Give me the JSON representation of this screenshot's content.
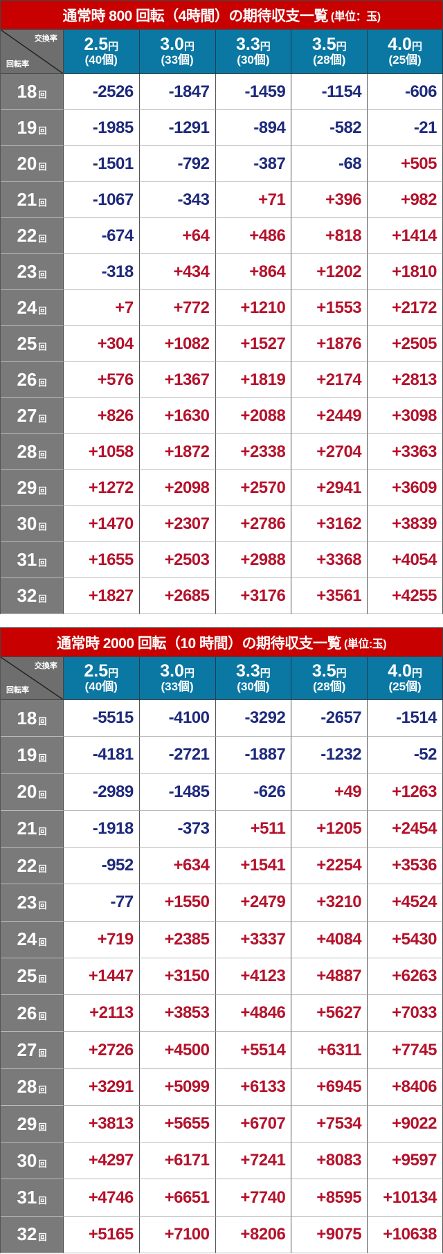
{
  "common": {
    "rate_label": "交換率",
    "spin_label": "回転率",
    "round_suffix": "回",
    "yen": "円",
    "columns": [
      {
        "rate": "2.5",
        "balls": "(40個)"
      },
      {
        "rate": "3.0",
        "balls": "(33個)"
      },
      {
        "rate": "3.3",
        "balls": "(30個)"
      },
      {
        "rate": "3.5",
        "balls": "(28個)"
      },
      {
        "rate": "4.0",
        "balls": "(25個)"
      }
    ],
    "colors": {
      "title_bg": "#c80000",
      "header_bg": "#0a78a3",
      "row_header_bg": "#7a7a7a",
      "negative": "#1d2a7c",
      "positive": "#b5122b"
    }
  },
  "tables": [
    {
      "title": "通常時 800 回転（4時間）の期待収支一覧",
      "unit": "(単位：玉)",
      "rows": [
        {
          "spin": "18",
          "values": [
            "-2526",
            "-1847",
            "-1459",
            "-1154",
            "-606"
          ]
        },
        {
          "spin": "19",
          "values": [
            "-1985",
            "-1291",
            "-894",
            "-582",
            "-21"
          ]
        },
        {
          "spin": "20",
          "values": [
            "-1501",
            "-792",
            "-387",
            "-68",
            "+505"
          ]
        },
        {
          "spin": "21",
          "values": [
            "-1067",
            "-343",
            "+71",
            "+396",
            "+982"
          ]
        },
        {
          "spin": "22",
          "values": [
            "-674",
            "+64",
            "+486",
            "+818",
            "+1414"
          ]
        },
        {
          "spin": "23",
          "values": [
            "-318",
            "+434",
            "+864",
            "+1202",
            "+1810"
          ]
        },
        {
          "spin": "24",
          "values": [
            "+7",
            "+772",
            "+1210",
            "+1553",
            "+2172"
          ]
        },
        {
          "spin": "25",
          "values": [
            "+304",
            "+1082",
            "+1527",
            "+1876",
            "+2505"
          ]
        },
        {
          "spin": "26",
          "values": [
            "+576",
            "+1367",
            "+1819",
            "+2174",
            "+2813"
          ]
        },
        {
          "spin": "27",
          "values": [
            "+826",
            "+1630",
            "+2088",
            "+2449",
            "+3098"
          ]
        },
        {
          "spin": "28",
          "values": [
            "+1058",
            "+1872",
            "+2338",
            "+2704",
            "+3363"
          ]
        },
        {
          "spin": "29",
          "values": [
            "+1272",
            "+2098",
            "+2570",
            "+2941",
            "+3609"
          ]
        },
        {
          "spin": "30",
          "values": [
            "+1470",
            "+2307",
            "+2786",
            "+3162",
            "+3839"
          ]
        },
        {
          "spin": "31",
          "values": [
            "+1655",
            "+2503",
            "+2988",
            "+3368",
            "+4054"
          ]
        },
        {
          "spin": "32",
          "values": [
            "+1827",
            "+2685",
            "+3176",
            "+3561",
            "+4255"
          ]
        }
      ]
    },
    {
      "title": "通常時 2000 回転（10 時間）の期待収支一覧",
      "unit": "(単位:玉)",
      "rows": [
        {
          "spin": "18",
          "values": [
            "-5515",
            "-4100",
            "-3292",
            "-2657",
            "-1514"
          ]
        },
        {
          "spin": "19",
          "values": [
            "-4181",
            "-2721",
            "-1887",
            "-1232",
            "-52"
          ]
        },
        {
          "spin": "20",
          "values": [
            "-2989",
            "-1485",
            "-626",
            "+49",
            "+1263"
          ]
        },
        {
          "spin": "21",
          "values": [
            "-1918",
            "-373",
            "+511",
            "+1205",
            "+2454"
          ]
        },
        {
          "spin": "22",
          "values": [
            "-952",
            "+634",
            "+1541",
            "+2254",
            "+3536"
          ]
        },
        {
          "spin": "23",
          "values": [
            "-77",
            "+1550",
            "+2479",
            "+3210",
            "+4524"
          ]
        },
        {
          "spin": "24",
          "values": [
            "+719",
            "+2385",
            "+3337",
            "+4084",
            "+5430"
          ]
        },
        {
          "spin": "25",
          "values": [
            "+1447",
            "+3150",
            "+4123",
            "+4887",
            "+6263"
          ]
        },
        {
          "spin": "26",
          "values": [
            "+2113",
            "+3853",
            "+4846",
            "+5627",
            "+7033"
          ]
        },
        {
          "spin": "27",
          "values": [
            "+2726",
            "+4500",
            "+5514",
            "+6311",
            "+7745"
          ]
        },
        {
          "spin": "28",
          "values": [
            "+3291",
            "+5099",
            "+6133",
            "+6945",
            "+8406"
          ]
        },
        {
          "spin": "29",
          "values": [
            "+3813",
            "+5655",
            "+6707",
            "+7534",
            "+9022"
          ]
        },
        {
          "spin": "30",
          "values": [
            "+4297",
            "+6171",
            "+7241",
            "+8083",
            "+9597"
          ]
        },
        {
          "spin": "31",
          "values": [
            "+4746",
            "+6651",
            "+7740",
            "+8595",
            "+10134"
          ]
        },
        {
          "spin": "32",
          "values": [
            "+5165",
            "+7100",
            "+8206",
            "+9075",
            "+10638"
          ]
        }
      ]
    }
  ]
}
